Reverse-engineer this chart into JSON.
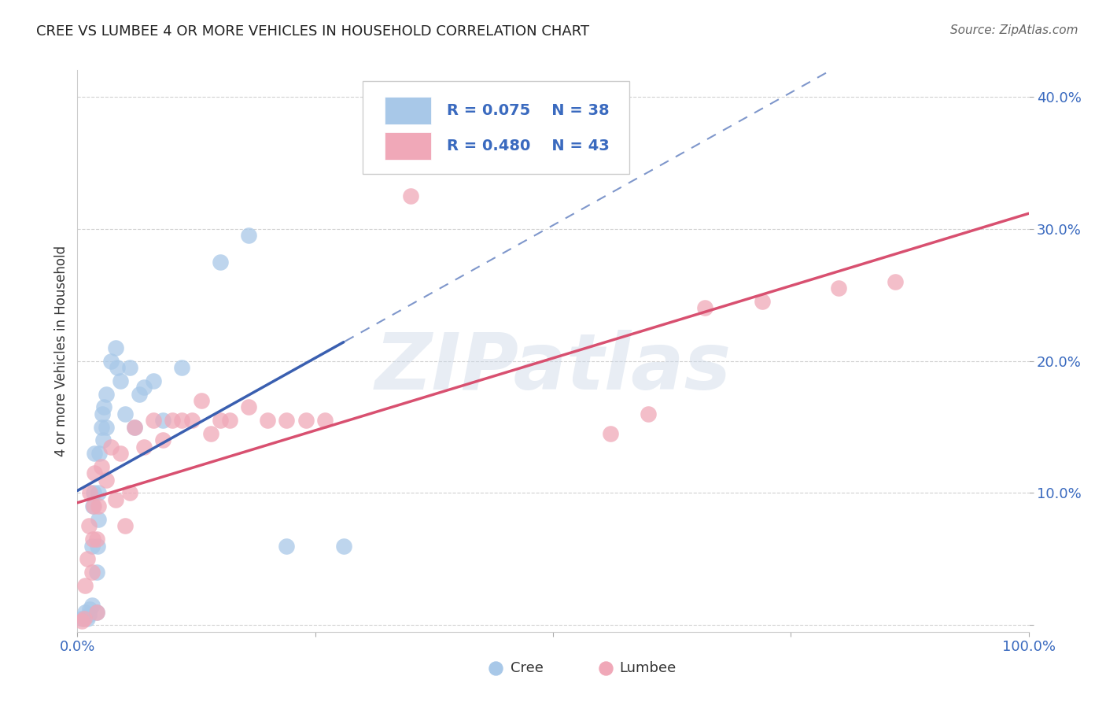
{
  "title": "CREE VS LUMBEE 4 OR MORE VEHICLES IN HOUSEHOLD CORRELATION CHART",
  "source_text": "Source: ZipAtlas.com",
  "ylabel": "4 or more Vehicles in Household",
  "xmin": 0.0,
  "xmax": 1.0,
  "ymin": -0.005,
  "ymax": 0.42,
  "cree_R": 0.075,
  "cree_N": 38,
  "lumbee_R": 0.48,
  "lumbee_N": 43,
  "cree_color": "#a8c8e8",
  "lumbee_color": "#f0a8b8",
  "cree_line_color": "#3a5fb0",
  "lumbee_line_color": "#d85070",
  "legend_text_color": "#3a6abf",
  "title_color": "#222222",
  "background_color": "#ffffff",
  "grid_color": "#cccccc",
  "watermark_text": "ZIPatlas",
  "cree_x": [
    0.005,
    0.008,
    0.01,
    0.012,
    0.013,
    0.015,
    0.015,
    0.016,
    0.017,
    0.018,
    0.02,
    0.02,
    0.021,
    0.022,
    0.022,
    0.023,
    0.025,
    0.026,
    0.027,
    0.028,
    0.03,
    0.03,
    0.035,
    0.04,
    0.042,
    0.045,
    0.05,
    0.055,
    0.06,
    0.065,
    0.07,
    0.08,
    0.09,
    0.11,
    0.15,
    0.18,
    0.22,
    0.28
  ],
  "cree_y": [
    0.005,
    0.01,
    0.005,
    0.008,
    0.012,
    0.015,
    0.06,
    0.09,
    0.1,
    0.13,
    0.01,
    0.04,
    0.06,
    0.08,
    0.1,
    0.13,
    0.15,
    0.16,
    0.14,
    0.165,
    0.15,
    0.175,
    0.2,
    0.21,
    0.195,
    0.185,
    0.16,
    0.195,
    0.15,
    0.175,
    0.18,
    0.185,
    0.155,
    0.195,
    0.275,
    0.295,
    0.06,
    0.06
  ],
  "lumbee_x": [
    0.005,
    0.007,
    0.008,
    0.01,
    0.012,
    0.013,
    0.015,
    0.016,
    0.017,
    0.018,
    0.02,
    0.02,
    0.022,
    0.025,
    0.03,
    0.035,
    0.04,
    0.045,
    0.05,
    0.055,
    0.06,
    0.07,
    0.08,
    0.09,
    0.1,
    0.11,
    0.12,
    0.13,
    0.14,
    0.15,
    0.16,
    0.18,
    0.2,
    0.22,
    0.24,
    0.26,
    0.35,
    0.56,
    0.6,
    0.66,
    0.72,
    0.8,
    0.86
  ],
  "lumbee_y": [
    0.003,
    0.005,
    0.03,
    0.05,
    0.075,
    0.1,
    0.04,
    0.065,
    0.09,
    0.115,
    0.01,
    0.065,
    0.09,
    0.12,
    0.11,
    0.135,
    0.095,
    0.13,
    0.075,
    0.1,
    0.15,
    0.135,
    0.155,
    0.14,
    0.155,
    0.155,
    0.155,
    0.17,
    0.145,
    0.155,
    0.155,
    0.165,
    0.155,
    0.155,
    0.155,
    0.155,
    0.325,
    0.145,
    0.16,
    0.24,
    0.245,
    0.255,
    0.26
  ]
}
